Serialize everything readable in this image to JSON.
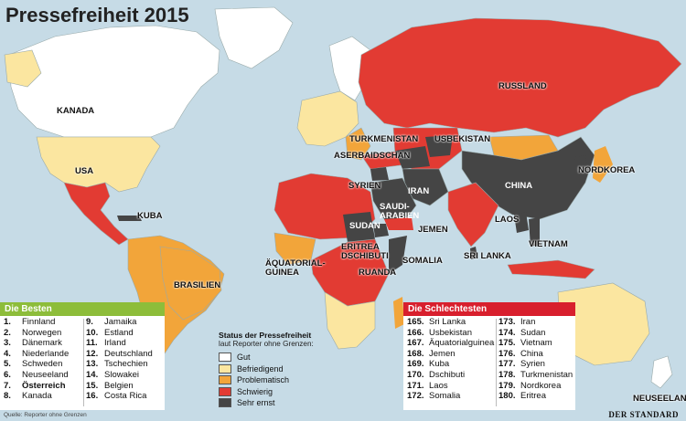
{
  "title": "Pressefreiheit 2015",
  "colors": {
    "sea": "#c6dbe6",
    "gut": "#ffffff",
    "befriedigend": "#fbe6a0",
    "problematisch": "#f2a53a",
    "schwierig": "#e23b33",
    "sehr_ernst": "#454545",
    "besten_header": "#8dbd3a",
    "schlechtesten_header": "#d81f2d"
  },
  "country_labels": [
    {
      "text": "KANADA",
      "shade": "dark"
    },
    {
      "text": "USA",
      "shade": "dark"
    },
    {
      "text": "KUBA",
      "shade": "dark"
    },
    {
      "text": "BRASILIEN",
      "shade": "dark"
    },
    {
      "text": "RUSSLAND",
      "shade": "dark"
    },
    {
      "text": "TURKMENISTAN",
      "shade": "dark"
    },
    {
      "text": "USBEKISTAN",
      "shade": "dark"
    },
    {
      "text": "ASERBAIDSCHAN",
      "shade": "dark"
    },
    {
      "text": "SYRIEN",
      "shade": "dark"
    },
    {
      "text": "IRAN",
      "shade": "light"
    },
    {
      "text": "SAUDI-\nARABIEN",
      "shade": "light"
    },
    {
      "text": "CHINA",
      "shade": "light"
    },
    {
      "text": "NORDKOREA",
      "shade": "dark"
    },
    {
      "text": "SUDAN",
      "shade": "light"
    },
    {
      "text": "JEMEN",
      "shade": "dark"
    },
    {
      "text": "LAOS",
      "shade": "dark"
    },
    {
      "text": "ERITREA\nDSCHIBUTI",
      "shade": "dark"
    },
    {
      "text": "ÄQUATORIAL-\nGUINEA",
      "shade": "dark"
    },
    {
      "text": "SOMALIA",
      "shade": "dark"
    },
    {
      "text": "SRI LANKA",
      "shade": "dark"
    },
    {
      "text": "VIETNAM",
      "shade": "dark"
    },
    {
      "text": "RUANDA",
      "shade": "dark"
    },
    {
      "text": "NEUSEELAND",
      "shade": "dark"
    }
  ],
  "besten": {
    "header": "Die Besten",
    "col1": [
      {
        "rank": "1.",
        "name": "Finnland"
      },
      {
        "rank": "2.",
        "name": "Norwegen"
      },
      {
        "rank": "3.",
        "name": "Dänemark"
      },
      {
        "rank": "4.",
        "name": "Niederlande"
      },
      {
        "rank": "5.",
        "name": "Schweden"
      },
      {
        "rank": "6.",
        "name": "Neuseeland"
      },
      {
        "rank": "7.",
        "name": "Österreich",
        "highlight": true
      },
      {
        "rank": "8.",
        "name": "Kanada"
      }
    ],
    "col2": [
      {
        "rank": "9.",
        "name": "Jamaika"
      },
      {
        "rank": "10.",
        "name": "Estland"
      },
      {
        "rank": "11.",
        "name": "Irland"
      },
      {
        "rank": "12.",
        "name": "Deutschland"
      },
      {
        "rank": "13.",
        "name": "Tschechien"
      },
      {
        "rank": "14.",
        "name": "Slowakei"
      },
      {
        "rank": "15.",
        "name": "Belgien"
      },
      {
        "rank": "16.",
        "name": "Costa Rica"
      }
    ]
  },
  "schlechtesten": {
    "header": "Die Schlechtesten",
    "col1": [
      {
        "rank": "165.",
        "name": "Sri Lanka"
      },
      {
        "rank": "166.",
        "name": "Usbekistan"
      },
      {
        "rank": "167.",
        "name": "Äquatorialguinea"
      },
      {
        "rank": "168.",
        "name": "Jemen"
      },
      {
        "rank": "169.",
        "name": "Kuba"
      },
      {
        "rank": "170.",
        "name": "Dschibuti"
      },
      {
        "rank": "171.",
        "name": "Laos"
      },
      {
        "rank": "172.",
        "name": "Somalia"
      }
    ],
    "col2": [
      {
        "rank": "173.",
        "name": "Iran"
      },
      {
        "rank": "174.",
        "name": "Sudan"
      },
      {
        "rank": "175.",
        "name": "Vietnam"
      },
      {
        "rank": "176.",
        "name": "China"
      },
      {
        "rank": "177.",
        "name": "Syrien"
      },
      {
        "rank": "178.",
        "name": "Turkmenistan"
      },
      {
        "rank": "179.",
        "name": "Nordkorea"
      },
      {
        "rank": "180.",
        "name": "Eritrea"
      }
    ]
  },
  "legend": {
    "title": "Status der Pressefreiheit",
    "subtitle": "laut Reporter ohne Grenzen:",
    "items": [
      {
        "label": "Gut",
        "color": "#ffffff"
      },
      {
        "label": "Befriedigend",
        "color": "#fbe6a0"
      },
      {
        "label": "Problematisch",
        "color": "#f2a53a"
      },
      {
        "label": "Schwierig",
        "color": "#e23b33"
      },
      {
        "label": "Sehr ernst",
        "color": "#454545"
      }
    ]
  },
  "source": "Quelle: Reporter ohne Grenzen",
  "brand": "DER STANDARD"
}
